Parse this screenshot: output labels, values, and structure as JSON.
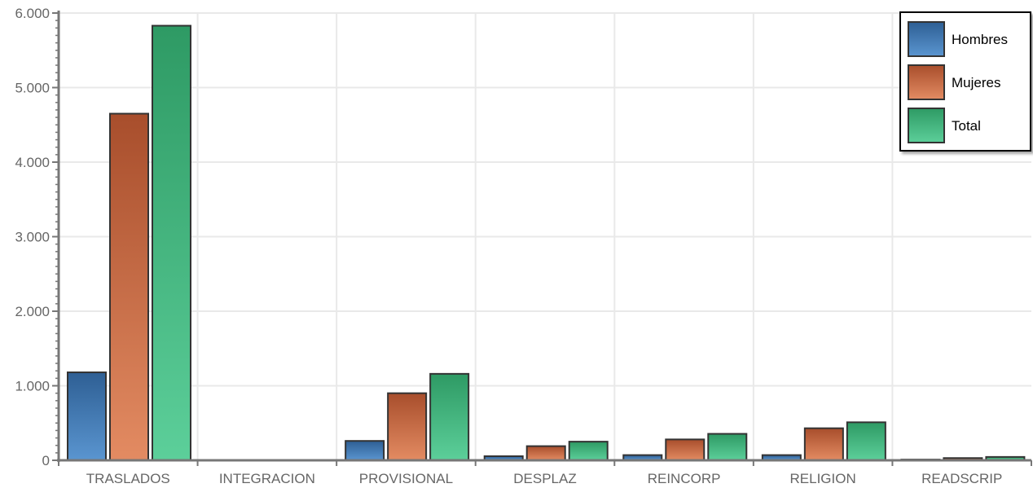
{
  "chart_data": {
    "type": "bar",
    "title": "",
    "xlabel": "",
    "ylabel": "",
    "ylim": [
      0,
      6000
    ],
    "yticks": [
      0,
      1000,
      2000,
      3000,
      4000,
      5000,
      6000
    ],
    "ytick_labels": [
      "0",
      "1.000",
      "2.000",
      "3.000",
      "4.000",
      "5.000",
      "6.000"
    ],
    "categories": [
      "TRASLADOS",
      "INTEGRACION",
      "PROVISIONAL",
      "DESPLAZ",
      "REINCORP",
      "RELIGION",
      "READSCRIP"
    ],
    "series": [
      {
        "name": "Hombres",
        "values": [
          1180,
          0,
          260,
          55,
          70,
          70,
          10
        ]
      },
      {
        "name": "Mujeres",
        "values": [
          4650,
          0,
          900,
          190,
          280,
          430,
          30
        ]
      },
      {
        "name": "Total",
        "values": [
          5830,
          0,
          1160,
          250,
          355,
          510,
          45
        ]
      }
    ],
    "grid": true,
    "legend_position": "top-right",
    "colors": {
      "Hombres": [
        "#5a95d0",
        "#2e5f94"
      ],
      "Mujeres": [
        "#e38b62",
        "#a84e2c"
      ],
      "Total": [
        "#5ccf9a",
        "#2e9a64"
      ],
      "bar_stroke": "#333333",
      "grid": "#e9e9e9",
      "axis": "#777777"
    }
  }
}
